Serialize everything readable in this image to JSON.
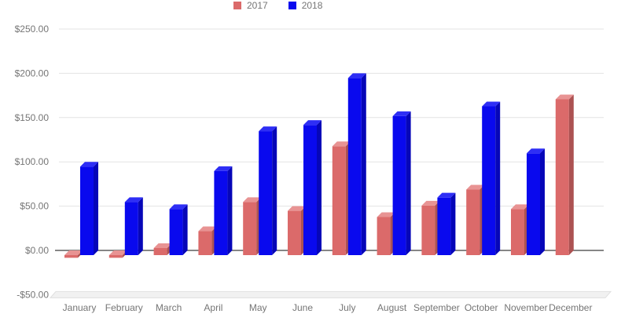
{
  "chart_data": {
    "type": "bar",
    "style": "3d-column",
    "title": "",
    "xlabel": "",
    "ylabel": "",
    "grid": true,
    "legend_position": "top-center",
    "categories": [
      "January",
      "February",
      "March",
      "April",
      "May",
      "June",
      "July",
      "August",
      "September",
      "October",
      "November",
      "December"
    ],
    "series": [
      {
        "name": "2017",
        "values": [
          -3,
          -3,
          8,
          27,
          60,
          50,
          123,
          43,
          56,
          74,
          52,
          176
        ],
        "color": "#DB6A6A",
        "color_top": "#E89393",
        "color_side": "#AC5252"
      },
      {
        "name": "2018",
        "values": [
          100,
          60,
          52,
          95,
          140,
          147,
          200,
          157,
          65,
          168,
          115,
          null
        ],
        "color": "#0909EE",
        "color_top": "#2E2EF5",
        "color_side": "#0606B8"
      }
    ],
    "y_tick_labels": [
      "$250.00",
      "$200.00",
      "$150.00",
      "$100.00",
      "$50.00",
      "$0.00",
      "-$50.00"
    ],
    "y_tick_values": [
      250,
      200,
      150,
      100,
      50,
      0,
      -50
    ],
    "ylim": [
      -50,
      250
    ],
    "axis_colors": {
      "grid": "#E3E3E3",
      "zero_line": "#3F3F3F",
      "floor": "#F1F1F1",
      "floor_edge": "#DFDFDF",
      "tick_text": "#757575"
    }
  }
}
